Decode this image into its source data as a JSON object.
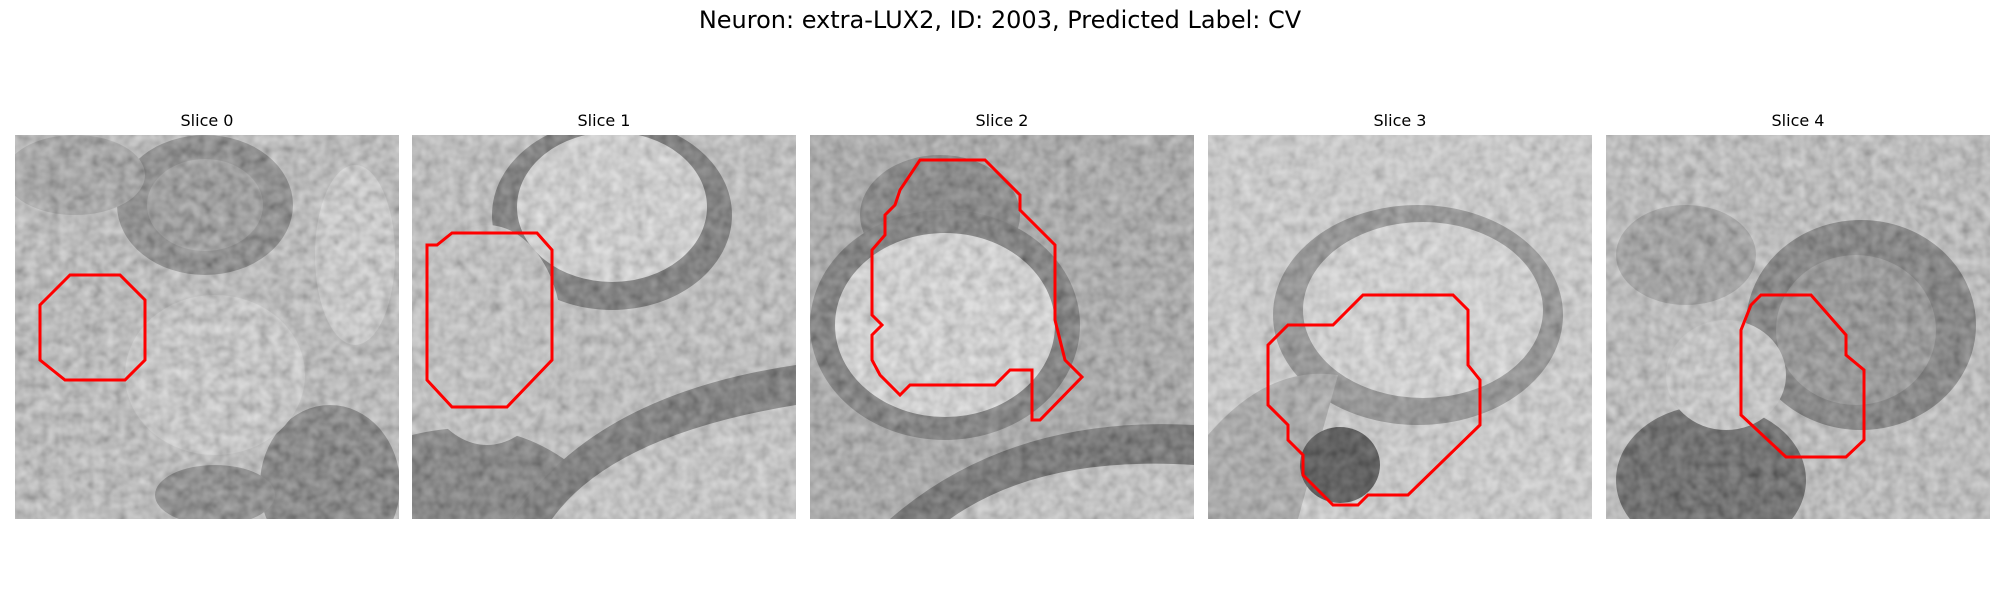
{
  "figure": {
    "title": "Neuron: extra-LUX2, ID: 2003, Predicted Label: CV"
  },
  "panels": [
    {
      "title": "Slice 0"
    },
    {
      "title": "Slice 1"
    },
    {
      "title": "Slice 2"
    },
    {
      "title": "Slice 3"
    },
    {
      "title": "Slice 4"
    }
  ],
  "colors": {
    "contour": "#ff0000",
    "background": "#ffffff"
  }
}
